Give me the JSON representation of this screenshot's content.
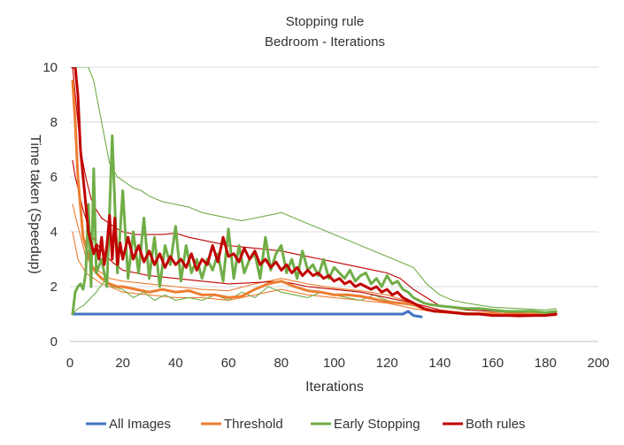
{
  "chart_data": {
    "type": "line",
    "title": "Stopping rule",
    "subtitle": "Bedroom - Iterations",
    "xlabel": "Iterations",
    "ylabel": "Time taken (Speedup)",
    "xlim": [
      0,
      200
    ],
    "ylim": [
      0,
      10
    ],
    "xticks": [
      0,
      20,
      40,
      60,
      80,
      100,
      120,
      140,
      160,
      180,
      200
    ],
    "yticks": [
      0,
      2,
      4,
      6,
      8,
      10
    ],
    "grid": "horizontal",
    "legend_position": "bottom",
    "series": [
      {
        "name": "All Images",
        "color": "#4472C4",
        "lines": [
          {
            "weight": "thick",
            "x": [
              1,
              10,
              20,
              30,
              40,
              50,
              60,
              70,
              80,
              90,
              100,
              110,
              120,
              126,
              128,
              130,
              133
            ],
            "y": [
              1.0,
              1.0,
              1.0,
              1.0,
              1.0,
              1.0,
              1.0,
              1.0,
              1.0,
              1.0,
              1.0,
              1.0,
              1.0,
              1.0,
              1.1,
              0.95,
              0.9
            ]
          }
        ]
      },
      {
        "name": "Threshold",
        "color": "#ED7D31",
        "lines": [
          {
            "weight": "thick",
            "x": [
              1,
              2,
              3,
              5,
              8,
              10,
              12,
              15,
              18,
              20,
              25,
              30,
              35,
              40,
              45,
              50,
              55,
              60,
              65,
              70,
              75,
              80,
              85,
              90,
              95,
              100,
              105,
              110,
              115,
              120,
              125,
              130,
              135,
              140,
              145,
              150,
              160,
              170,
              180,
              184
            ],
            "y": [
              9.5,
              8.0,
              6.0,
              3.8,
              2.8,
              2.5,
              2.3,
              2.1,
              2.0,
              2.0,
              1.9,
              1.8,
              1.9,
              1.8,
              1.85,
              1.7,
              1.7,
              1.6,
              1.65,
              1.9,
              2.1,
              2.2,
              2.0,
              1.85,
              1.8,
              1.7,
              1.7,
              1.65,
              1.55,
              1.45,
              1.4,
              1.35,
              1.15,
              1.1,
              1.05,
              1.0,
              1.0,
              1.0,
              1.0,
              1.0
            ]
          },
          {
            "weight": "thin",
            "x": [
              1,
              3,
              6,
              9,
              12,
              15,
              20,
              30,
              40,
              50,
              60,
              70,
              80,
              90,
              100,
              110,
              120,
              130,
              140,
              150,
              160,
              170,
              184
            ],
            "y": [
              4.0,
              3.0,
              2.5,
              2.3,
              2.1,
              2.0,
              1.8,
              1.7,
              1.6,
              1.6,
              1.5,
              1.7,
              1.9,
              1.7,
              1.6,
              1.5,
              1.4,
              1.2,
              1.05,
              1.0,
              1.0,
              0.95,
              1.0
            ]
          },
          {
            "weight": "thin",
            "x": [
              1,
              3,
              6,
              9,
              12,
              15,
              20,
              30,
              40,
              50,
              60,
              70,
              80,
              90,
              100,
              110,
              120,
              130,
              140,
              150,
              160,
              170,
              184
            ],
            "y": [
              5.0,
              4.2,
              3.1,
              2.7,
              2.5,
              2.3,
              2.2,
              2.1,
              2.0,
              1.9,
              1.85,
              2.1,
              2.3,
              2.1,
              1.95,
              1.85,
              1.7,
              1.4,
              1.15,
              1.05,
              1.05,
              1.0,
              1.05
            ]
          }
        ]
      },
      {
        "name": "Early Stopping",
        "color": "#70AD47",
        "lines": [
          {
            "weight": "thick",
            "x": [
              1,
              2,
              3,
              4,
              5,
              6,
              7,
              8,
              9,
              10,
              12,
              14,
              16,
              18,
              20,
              22,
              24,
              26,
              28,
              30,
              32,
              34,
              36,
              38,
              40,
              42,
              44,
              46,
              48,
              50,
              52,
              54,
              56,
              58,
              60,
              62,
              64,
              66,
              68,
              70,
              72,
              74,
              76,
              78,
              80,
              82,
              84,
              86,
              88,
              90,
              92,
              94,
              96,
              98,
              100,
              102,
              104,
              106,
              108,
              110,
              112,
              114,
              116,
              118,
              120,
              122,
              124,
              126,
              128,
              130,
              132,
              134,
              136,
              140,
              145,
              150,
              155,
              160,
              165,
              170,
              175,
              180,
              184
            ],
            "y": [
              1.0,
              1.8,
              2.0,
              2.1,
              1.9,
              2.5,
              5.0,
              2.0,
              6.3,
              2.5,
              3.0,
              2.0,
              7.5,
              2.5,
              5.5,
              2.3,
              4.0,
              2.5,
              4.5,
              2.3,
              3.8,
              2.0,
              3.5,
              2.8,
              4.2,
              2.2,
              3.5,
              2.5,
              3.0,
              2.3,
              3.0,
              2.6,
              3.2,
              2.2,
              4.1,
              2.3,
              3.5,
              2.5,
              3.0,
              3.2,
              2.3,
              3.8,
              2.6,
              3.2,
              3.5,
              2.5,
              3.0,
              2.3,
              3.3,
              2.6,
              2.8,
              2.4,
              3.0,
              2.3,
              2.7,
              2.5,
              2.3,
              2.6,
              2.2,
              2.4,
              2.5,
              2.1,
              2.3,
              2.0,
              2.4,
              2.1,
              2.2,
              1.9,
              1.8,
              1.6,
              1.5,
              1.4,
              1.35,
              1.3,
              1.25,
              1.2,
              1.2,
              1.15,
              1.1,
              1.1,
              1.1,
              1.05,
              1.1
            ]
          },
          {
            "weight": "thin",
            "x": [
              1,
              3,
              5,
              7,
              9,
              11,
              13,
              15,
              18,
              21,
              24,
              27,
              30,
              35,
              40,
              45,
              50,
              55,
              60,
              65,
              70,
              75,
              80,
              85,
              90,
              95,
              100,
              105,
              110,
              115,
              120,
              125,
              130,
              135,
              140,
              145,
              150,
              160,
              170,
              180,
              184
            ],
            "y": [
              10.0,
              10.0,
              10.0,
              10.0,
              9.5,
              8.5,
              7.5,
              6.5,
              6.0,
              5.8,
              5.6,
              5.5,
              5.3,
              5.1,
              5.0,
              4.9,
              4.7,
              4.6,
              4.5,
              4.4,
              4.5,
              4.6,
              4.7,
              4.5,
              4.3,
              4.1,
              3.9,
              3.7,
              3.5,
              3.3,
              3.1,
              2.9,
              2.7,
              2.1,
              1.7,
              1.5,
              1.4,
              1.25,
              1.2,
              1.15,
              1.2
            ]
          },
          {
            "weight": "thin",
            "x": [
              1,
              3,
              5,
              7,
              10,
              13,
              16,
              20,
              24,
              28,
              32,
              36,
              40,
              45,
              50,
              55,
              60,
              65,
              70,
              75,
              80,
              85,
              90,
              95,
              100,
              105,
              110,
              115,
              120,
              125,
              130,
              135,
              140,
              150,
              160,
              170,
              184
            ],
            "y": [
              1.0,
              1.2,
              1.3,
              1.5,
              1.8,
              2.2,
              2.0,
              1.9,
              1.6,
              1.8,
              1.5,
              1.7,
              1.5,
              1.6,
              1.5,
              1.7,
              1.5,
              1.8,
              1.6,
              2.0,
              1.8,
              1.7,
              1.6,
              1.8,
              1.7,
              1.6,
              1.5,
              1.7,
              1.5,
              1.4,
              1.3,
              1.2,
              1.1,
              1.05,
              1.0,
              1.0,
              1.05
            ]
          }
        ]
      },
      {
        "name": "Both rules",
        "color": "#C00000",
        "lines": [
          {
            "weight": "thick",
            "x": [
              1,
              2,
              3,
              4,
              5,
              6,
              7,
              8,
              9,
              10,
              11,
              12,
              13,
              14,
              15,
              16,
              17,
              18,
              19,
              20,
              22,
              24,
              26,
              28,
              30,
              32,
              34,
              36,
              38,
              40,
              42,
              44,
              46,
              48,
              50,
              52,
              54,
              56,
              58,
              60,
              62,
              64,
              66,
              68,
              70,
              72,
              74,
              76,
              78,
              80,
              82,
              84,
              86,
              88,
              90,
              92,
              94,
              96,
              98,
              100,
              102,
              104,
              106,
              108,
              110,
              112,
              114,
              116,
              118,
              120,
              122,
              124,
              126,
              128,
              130,
              132,
              134,
              136,
              138,
              140,
              145,
              150,
              155,
              160,
              165,
              170,
              175,
              180,
              184
            ],
            "y": [
              10.0,
              10.0,
              9.0,
              7.0,
              6.0,
              5.0,
              4.0,
              3.6,
              3.2,
              3.5,
              3.0,
              3.8,
              2.8,
              3.5,
              4.6,
              3.0,
              4.5,
              2.8,
              3.6,
              3.0,
              3.8,
              3.0,
              3.5,
              2.9,
              3.3,
              2.8,
              3.2,
              2.7,
              3.1,
              2.8,
              3.0,
              2.7,
              3.2,
              2.6,
              3.0,
              2.8,
              3.5,
              2.9,
              3.8,
              3.1,
              3.2,
              2.9,
              3.4,
              3.0,
              3.3,
              2.8,
              3.0,
              2.7,
              2.9,
              2.6,
              2.8,
              2.5,
              2.7,
              2.4,
              2.6,
              2.4,
              2.5,
              2.3,
              2.4,
              2.2,
              2.3,
              2.1,
              2.2,
              2.0,
              2.1,
              2.0,
              1.9,
              2.0,
              1.8,
              1.9,
              1.7,
              1.8,
              1.6,
              1.5,
              1.4,
              1.3,
              1.2,
              1.15,
              1.1,
              1.1,
              1.05,
              1.0,
              1.0,
              0.95,
              0.95,
              0.95,
              0.95,
              0.95,
              1.0
            ]
          },
          {
            "weight": "thin",
            "x": [
              1,
              2,
              3,
              4,
              5,
              6,
              8,
              10,
              12,
              15,
              18,
              20,
              25,
              30,
              35,
              40,
              45,
              50,
              55,
              60,
              65,
              70,
              75,
              80,
              85,
              90,
              95,
              100,
              105,
              110,
              115,
              120,
              125,
              130,
              135,
              140,
              150,
              160,
              170,
              180,
              184
            ],
            "y": [
              10.0,
              9.0,
              8.0,
              7.0,
              6.5,
              6.0,
              5.2,
              4.8,
              4.5,
              4.3,
              4.1,
              4.0,
              3.9,
              3.9,
              3.9,
              3.95,
              3.8,
              3.7,
              3.6,
              3.5,
              3.45,
              3.4,
              3.35,
              3.3,
              3.2,
              3.1,
              3.0,
              2.9,
              2.8,
              2.7,
              2.6,
              2.5,
              2.3,
              1.9,
              1.6,
              1.3,
              1.15,
              1.1,
              1.05,
              1.0,
              1.05
            ]
          },
          {
            "weight": "thin",
            "x": [
              1,
              2,
              3,
              5,
              8,
              12,
              16,
              20,
              25,
              30,
              40,
              50,
              60,
              70,
              80,
              90,
              100,
              110,
              120,
              130,
              140,
              150,
              160,
              170,
              184
            ],
            "y": [
              6.6,
              6.0,
              5.6,
              4.8,
              3.9,
              3.3,
              2.9,
              2.6,
              2.5,
              2.4,
              2.3,
              2.2,
              2.1,
              2.15,
              2.2,
              2.0,
              1.9,
              1.8,
              1.6,
              1.4,
              1.15,
              1.0,
              0.95,
              0.9,
              0.95
            ]
          }
        ]
      }
    ]
  }
}
